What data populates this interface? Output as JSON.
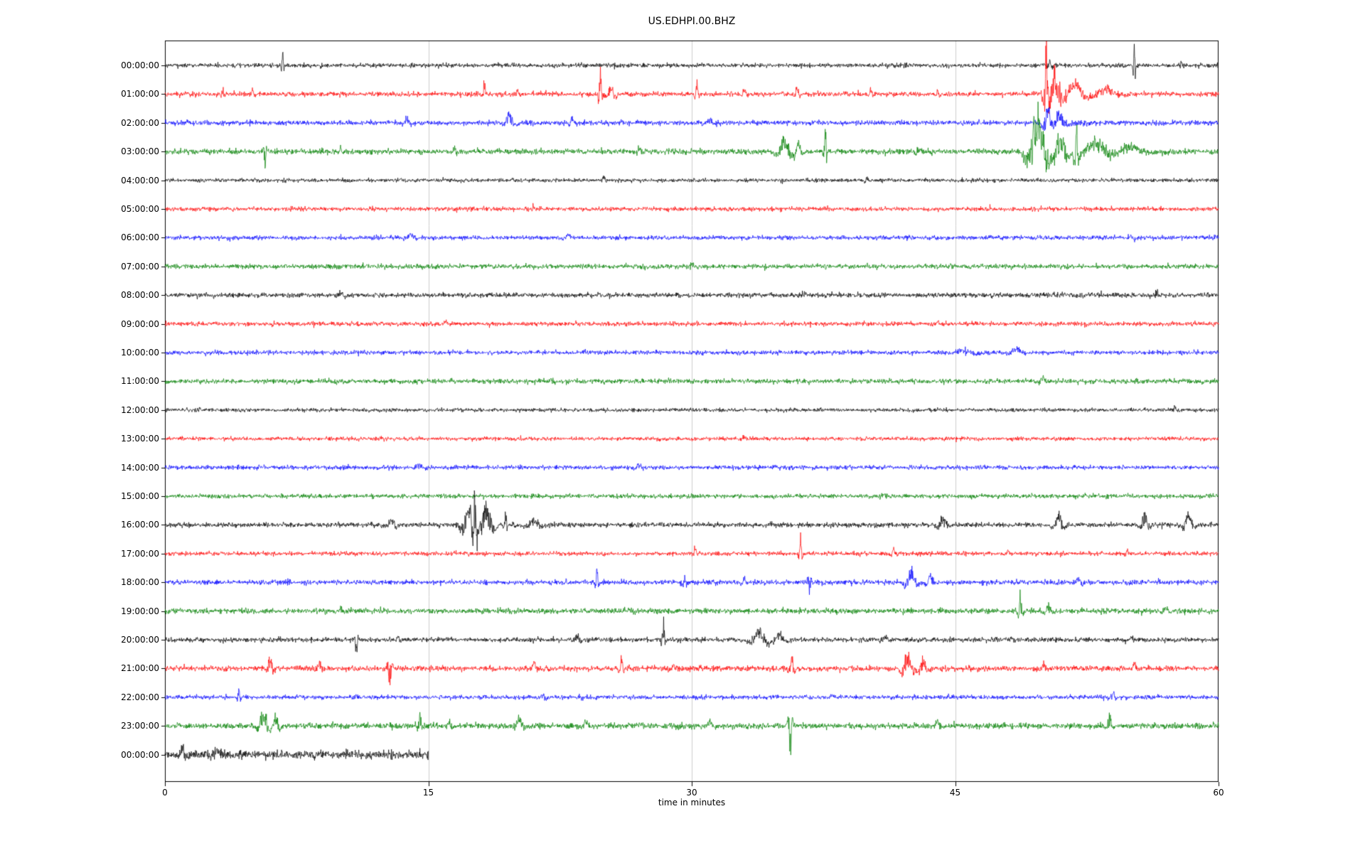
{
  "chart_data": {
    "type": "line",
    "subtype": "seismogram-dayplot",
    "title": "US.EDHPI.00.BHZ",
    "xlabel": "time in minutes",
    "x_range": [
      0,
      60
    ],
    "x_ticks": [
      0,
      15,
      30,
      45,
      60
    ],
    "grid_x": [
      15,
      30,
      45
    ],
    "grid_color": "#cccccc",
    "frame_color": "#000000",
    "trace_color_cycle": [
      "#000000",
      "#ff0000",
      "#0000ff",
      "#008000"
    ],
    "rows": [
      {
        "label": "00:00:00",
        "color": "#000000",
        "t_end": 60,
        "noise": 0.08,
        "events": [
          [
            6.7,
            0.55,
            0.05
          ],
          [
            25.6,
            -0.18,
            0.05
          ],
          [
            50.4,
            0.2,
            0.12
          ],
          [
            55.2,
            0.7,
            0.05
          ],
          [
            57.9,
            0.12,
            0.08
          ]
        ]
      },
      {
        "label": "01:00:00",
        "color": "#ff0000",
        "t_end": 60,
        "noise": 0.09,
        "events": [
          [
            3.3,
            0.3,
            0.07
          ],
          [
            5.0,
            0.12,
            0.1
          ],
          [
            18.2,
            0.28,
            0.12
          ],
          [
            20.1,
            0.15,
            0.1
          ],
          [
            24.8,
            0.55,
            0.08
          ],
          [
            25.4,
            0.25,
            0.2
          ],
          [
            30.3,
            0.28,
            0.1
          ],
          [
            33.0,
            0.12,
            0.15
          ],
          [
            36.0,
            0.22,
            0.12
          ],
          [
            40.2,
            0.18,
            0.1
          ],
          [
            44.0,
            0.12,
            0.1
          ],
          [
            50.2,
            1.3,
            0.12
          ],
          [
            50.7,
            0.6,
            0.35
          ],
          [
            51.8,
            0.3,
            0.6
          ],
          [
            53.5,
            0.15,
            0.8
          ]
        ]
      },
      {
        "label": "02:00:00",
        "color": "#0000ff",
        "t_end": 60,
        "noise": 0.09,
        "events": [
          [
            13.8,
            0.12,
            0.2
          ],
          [
            19.6,
            0.25,
            0.25
          ],
          [
            23.2,
            0.12,
            0.2
          ],
          [
            31.0,
            0.1,
            0.2
          ],
          [
            50.3,
            0.45,
            0.2
          ],
          [
            50.9,
            0.25,
            0.4
          ]
        ]
      },
      {
        "label": "03:00:00",
        "color": "#008000",
        "t_end": 60,
        "noise": 0.1,
        "events": [
          [
            5.7,
            -0.32,
            0.07
          ],
          [
            10.0,
            0.1,
            0.1
          ],
          [
            16.5,
            0.12,
            0.1
          ],
          [
            27.0,
            0.1,
            0.15
          ],
          [
            35.3,
            0.4,
            0.35
          ],
          [
            36.1,
            0.25,
            0.2
          ],
          [
            37.6,
            0.5,
            0.08
          ],
          [
            43.0,
            0.12,
            0.2
          ],
          [
            49.7,
            1.0,
            0.45
          ],
          [
            51.0,
            0.5,
            0.3
          ],
          [
            51.9,
            0.8,
            0.1
          ],
          [
            53.0,
            0.3,
            0.8
          ],
          [
            55.0,
            0.15,
            1.0
          ]
        ]
      },
      {
        "label": "04:00:00",
        "color": "#000000",
        "t_end": 60,
        "noise": 0.07,
        "events": [
          [
            25.0,
            0.1,
            0.1
          ],
          [
            40.0,
            0.08,
            0.1
          ]
        ]
      },
      {
        "label": "05:00:00",
        "color": "#ff0000",
        "t_end": 60,
        "noise": 0.08,
        "events": [
          [
            21.0,
            0.08,
            0.1
          ],
          [
            47.0,
            0.07,
            0.1
          ]
        ]
      },
      {
        "label": "06:00:00",
        "color": "#0000ff",
        "t_end": 60,
        "noise": 0.08,
        "events": [
          [
            14.0,
            0.1,
            0.3
          ],
          [
            23.0,
            0.08,
            0.2
          ],
          [
            55.0,
            0.08,
            0.2
          ]
        ]
      },
      {
        "label": "07:00:00",
        "color": "#008000",
        "t_end": 60,
        "noise": 0.09,
        "events": [
          [
            30.0,
            0.07,
            0.2
          ]
        ]
      },
      {
        "label": "08:00:00",
        "color": "#000000",
        "t_end": 60,
        "noise": 0.09,
        "events": [
          [
            10.0,
            0.08,
            0.2
          ],
          [
            56.5,
            0.12,
            0.1
          ]
        ]
      },
      {
        "label": "09:00:00",
        "color": "#ff0000",
        "t_end": 60,
        "noise": 0.08,
        "events": [
          [
            16.0,
            0.07,
            0.2
          ],
          [
            44.0,
            0.07,
            0.2
          ]
        ]
      },
      {
        "label": "10:00:00",
        "color": "#0000ff",
        "t_end": 60,
        "noise": 0.08,
        "events": [
          [
            45.5,
            0.1,
            0.5
          ],
          [
            48.5,
            0.1,
            0.4
          ]
        ]
      },
      {
        "label": "11:00:00",
        "color": "#008000",
        "t_end": 60,
        "noise": 0.09,
        "events": [
          [
            22.0,
            0.07,
            0.2
          ],
          [
            50.0,
            0.08,
            0.2
          ]
        ]
      },
      {
        "label": "12:00:00",
        "color": "#000000",
        "t_end": 60,
        "noise": 0.07,
        "events": [
          [
            2.0,
            0.1,
            0.08
          ],
          [
            57.5,
            0.09,
            0.1
          ]
        ]
      },
      {
        "label": "13:00:00",
        "color": "#ff0000",
        "t_end": 60,
        "noise": 0.07,
        "events": [
          [
            33.0,
            0.06,
            0.2
          ]
        ]
      },
      {
        "label": "14:00:00",
        "color": "#0000ff",
        "t_end": 60,
        "noise": 0.08,
        "events": [
          [
            14.5,
            0.1,
            0.3
          ],
          [
            27.0,
            0.07,
            0.2
          ]
        ]
      },
      {
        "label": "15:00:00",
        "color": "#008000",
        "t_end": 60,
        "noise": 0.08,
        "events": [
          [
            41.0,
            0.07,
            0.2
          ]
        ]
      },
      {
        "label": "16:00:00",
        "color": "#000000",
        "t_end": 60,
        "noise": 0.09,
        "events": [
          [
            12.9,
            0.15,
            0.25
          ],
          [
            17.3,
            0.5,
            0.3
          ],
          [
            17.65,
            1.0,
            0.09
          ],
          [
            18.3,
            0.5,
            0.35
          ],
          [
            19.4,
            0.32,
            0.07
          ],
          [
            21.0,
            0.15,
            0.4
          ],
          [
            44.3,
            0.18,
            0.25
          ],
          [
            50.9,
            0.28,
            0.25
          ],
          [
            55.8,
            0.3,
            0.2
          ],
          [
            58.3,
            0.28,
            0.25
          ]
        ]
      },
      {
        "label": "17:00:00",
        "color": "#ff0000",
        "t_end": 60,
        "noise": 0.08,
        "events": [
          [
            30.2,
            0.18,
            0.1
          ],
          [
            36.2,
            0.45,
            0.08
          ],
          [
            41.5,
            0.12,
            0.15
          ],
          [
            48.0,
            0.1,
            0.15
          ],
          [
            54.8,
            0.12,
            0.1
          ]
        ]
      },
      {
        "label": "18:00:00",
        "color": "#0000ff",
        "t_end": 60,
        "noise": 0.09,
        "events": [
          [
            24.6,
            0.3,
            0.08
          ],
          [
            29.6,
            0.26,
            0.08
          ],
          [
            33.0,
            0.12,
            0.15
          ],
          [
            36.7,
            -0.5,
            0.07
          ],
          [
            42.5,
            0.28,
            0.3
          ],
          [
            43.6,
            0.2,
            0.2
          ],
          [
            52.0,
            0.12,
            0.2
          ]
        ]
      },
      {
        "label": "19:00:00",
        "color": "#008000",
        "t_end": 60,
        "noise": 0.1,
        "events": [
          [
            10.0,
            0.1,
            0.2
          ],
          [
            48.7,
            0.4,
            0.1
          ],
          [
            50.3,
            0.18,
            0.2
          ],
          [
            57.0,
            0.1,
            0.2
          ]
        ]
      },
      {
        "label": "20:00:00",
        "color": "#000000",
        "t_end": 60,
        "noise": 0.09,
        "events": [
          [
            10.9,
            -0.32,
            0.1
          ],
          [
            13.3,
            0.15,
            0.1
          ],
          [
            23.5,
            0.12,
            0.2
          ],
          [
            28.4,
            0.45,
            0.09
          ],
          [
            33.8,
            0.3,
            0.4
          ],
          [
            35.0,
            0.2,
            0.3
          ],
          [
            41.0,
            0.12,
            0.2
          ],
          [
            55.0,
            0.1,
            0.2
          ]
        ]
      },
      {
        "label": "21:00:00",
        "color": "#ff0000",
        "t_end": 60,
        "noise": 0.1,
        "events": [
          [
            6.0,
            0.28,
            0.15
          ],
          [
            8.8,
            0.15,
            0.2
          ],
          [
            12.8,
            -0.4,
            0.1
          ],
          [
            21.0,
            0.15,
            0.2
          ],
          [
            26.0,
            0.35,
            0.1
          ],
          [
            29.0,
            0.12,
            0.2
          ],
          [
            35.7,
            0.32,
            0.12
          ],
          [
            42.3,
            0.45,
            0.25
          ],
          [
            43.2,
            0.3,
            0.2
          ],
          [
            50.0,
            0.12,
            0.2
          ],
          [
            55.2,
            0.15,
            0.15
          ]
        ]
      },
      {
        "label": "22:00:00",
        "color": "#0000ff",
        "t_end": 60,
        "noise": 0.08,
        "events": [
          [
            4.2,
            0.28,
            0.08
          ],
          [
            21.5,
            0.12,
            0.15
          ],
          [
            38.0,
            0.08,
            0.2
          ],
          [
            54.0,
            0.1,
            0.15
          ]
        ]
      },
      {
        "label": "23:00:00",
        "color": "#008000",
        "t_end": 60,
        "noise": 0.11,
        "events": [
          [
            5.6,
            0.35,
            0.3
          ],
          [
            6.3,
            0.25,
            0.2
          ],
          [
            14.5,
            0.28,
            0.1
          ],
          [
            16.2,
            0.15,
            0.15
          ],
          [
            20.2,
            0.22,
            0.25
          ],
          [
            24.0,
            0.12,
            0.2
          ],
          [
            31.0,
            0.12,
            0.2
          ],
          [
            35.6,
            -0.8,
            0.1
          ],
          [
            44.0,
            0.12,
            0.2
          ],
          [
            53.8,
            0.25,
            0.15
          ]
        ]
      },
      {
        "label": "00:00:00",
        "color": "#000000",
        "t_end": 15,
        "noise": 0.16,
        "events": [
          [
            1.0,
            0.25,
            0.2
          ],
          [
            3.0,
            0.15,
            0.3
          ]
        ]
      }
    ]
  }
}
